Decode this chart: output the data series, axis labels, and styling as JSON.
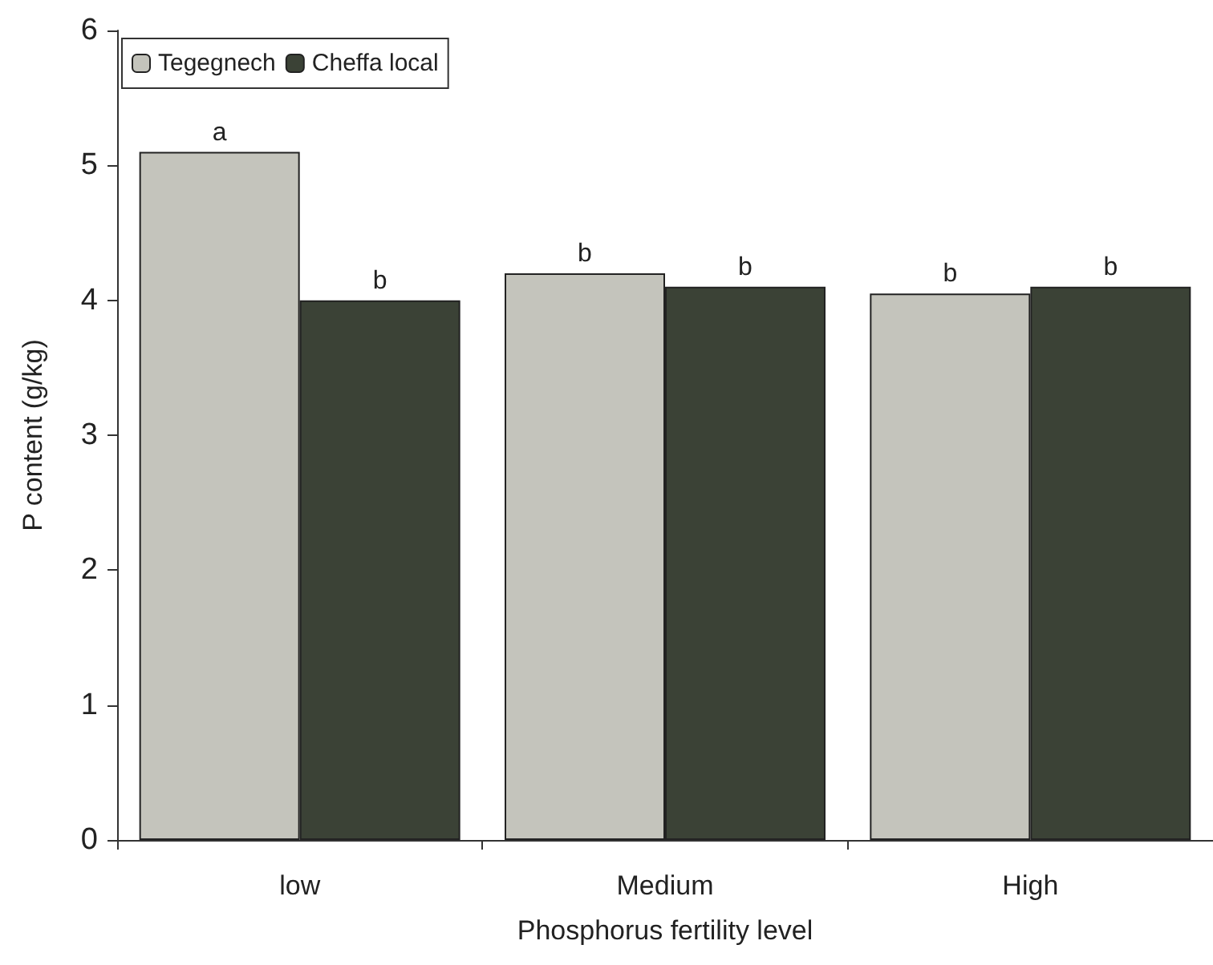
{
  "chart_data": {
    "type": "bar",
    "xlabel": "Phosphorus fertility level",
    "ylabel": "P content (g/kg)",
    "categories": [
      "low",
      "Medium",
      "High"
    ],
    "series": [
      {
        "name": "Tegegnech",
        "color": "#c4c4bc",
        "values": [
          5.1,
          4.2,
          4.05
        ],
        "value_labels": [
          "a",
          "b",
          "b"
        ]
      },
      {
        "name": "Cheffa local",
        "color": "#3b4236",
        "values": [
          4.0,
          4.1,
          4.1
        ],
        "value_labels": [
          "b",
          "b",
          "b"
        ]
      }
    ],
    "ylim": [
      0,
      6
    ],
    "yticks": [
      0,
      1,
      2,
      3,
      4,
      5,
      6
    ],
    "grid": false,
    "legend": "top left"
  }
}
